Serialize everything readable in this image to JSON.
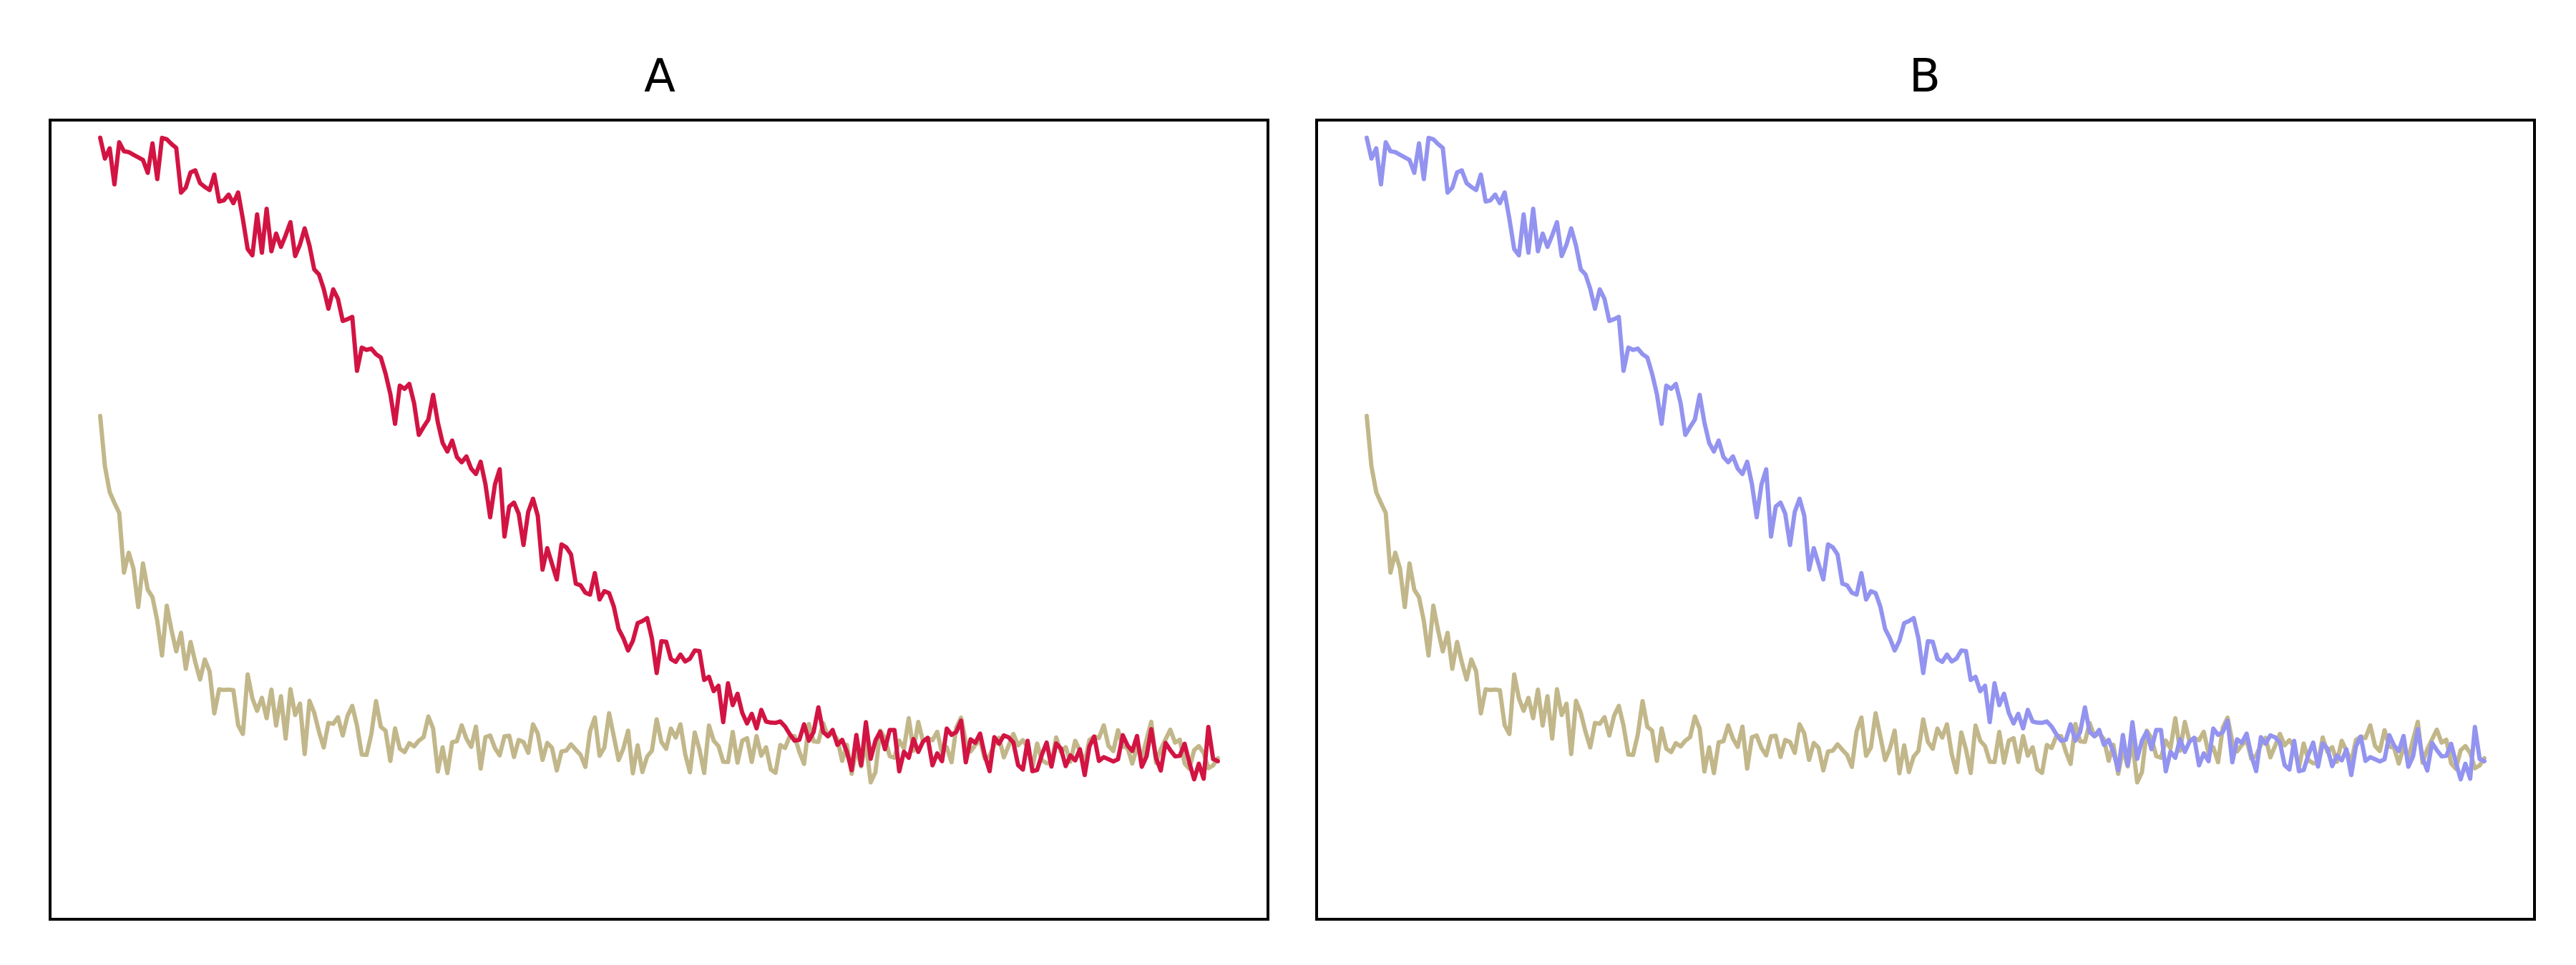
{
  "chart_data": [
    {
      "type": "line",
      "title": "A",
      "xlim": [
        0,
        235
      ],
      "ylim": [
        -0.18,
        1.02
      ],
      "grid": false,
      "series": [
        {
          "color": "#c2b78a",
          "anchors": [
            [
              0,
              0.54
            ],
            [
              5,
              0.38
            ],
            [
              10,
              0.3
            ],
            [
              18,
              0.22
            ],
            [
              25,
              0.17
            ],
            [
              35,
              0.13
            ],
            [
              50,
              0.11
            ],
            [
              70,
              0.09
            ],
            [
              100,
              0.08
            ],
            [
              150,
              0.075
            ],
            [
              235,
              0.072
            ]
          ],
          "noise": 0.022
        },
        {
          "color": "#d21443",
          "anchors": [
            [
              0,
              0.98
            ],
            [
              15,
              0.95
            ],
            [
              25,
              0.9
            ],
            [
              35,
              0.85
            ],
            [
              45,
              0.8
            ],
            [
              50,
              0.75
            ],
            [
              55,
              0.67
            ],
            [
              65,
              0.6
            ],
            [
              75,
              0.52
            ],
            [
              85,
              0.45
            ],
            [
              95,
              0.38
            ],
            [
              105,
              0.31
            ],
            [
              115,
              0.25
            ],
            [
              125,
              0.19
            ],
            [
              135,
              0.14
            ],
            [
              145,
              0.11
            ],
            [
              160,
              0.09
            ],
            [
              180,
              0.08
            ],
            [
              200,
              0.075
            ],
            [
              235,
              0.07
            ]
          ],
          "noise": 0.022
        }
      ]
    },
    {
      "type": "line",
      "title": "B",
      "xlim": [
        0,
        235
      ],
      "ylim": [
        -0.18,
        1.02
      ],
      "grid": false,
      "series": [
        {
          "color": "#c2b78a",
          "anchors": [
            [
              0,
              0.54
            ],
            [
              5,
              0.38
            ],
            [
              10,
              0.3
            ],
            [
              18,
              0.22
            ],
            [
              25,
              0.17
            ],
            [
              35,
              0.13
            ],
            [
              50,
              0.11
            ],
            [
              70,
              0.09
            ],
            [
              100,
              0.08
            ],
            [
              150,
              0.075
            ],
            [
              235,
              0.072
            ]
          ],
          "noise": 0.022
        },
        {
          "color": "#9393f0",
          "anchors": [
            [
              0,
              0.98
            ],
            [
              15,
              0.95
            ],
            [
              25,
              0.9
            ],
            [
              35,
              0.85
            ],
            [
              45,
              0.8
            ],
            [
              50,
              0.75
            ],
            [
              55,
              0.67
            ],
            [
              65,
              0.6
            ],
            [
              75,
              0.52
            ],
            [
              85,
              0.45
            ],
            [
              95,
              0.38
            ],
            [
              105,
              0.31
            ],
            [
              115,
              0.25
            ],
            [
              125,
              0.19
            ],
            [
              135,
              0.14
            ],
            [
              145,
              0.11
            ],
            [
              160,
              0.09
            ],
            [
              180,
              0.08
            ],
            [
              200,
              0.075
            ],
            [
              235,
              0.07
            ]
          ],
          "noise": 0.022
        }
      ]
    }
  ]
}
